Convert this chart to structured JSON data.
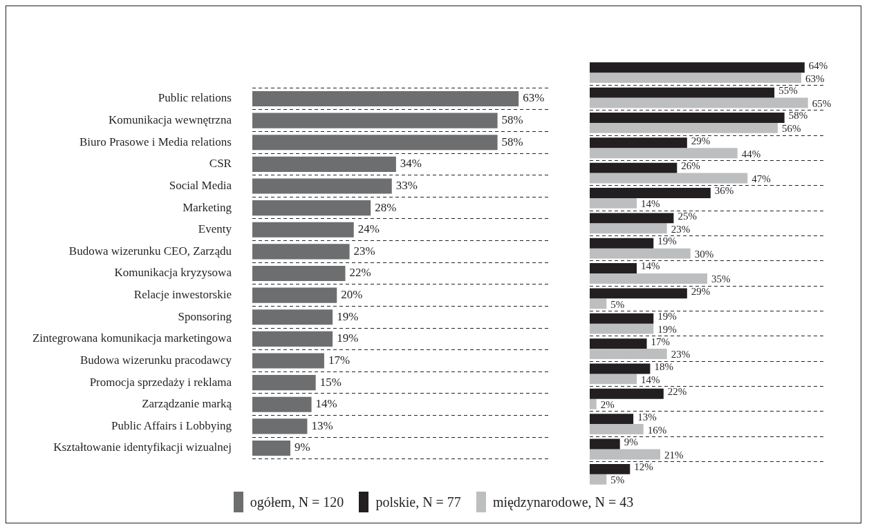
{
  "chart_data": [
    {
      "type": "bar",
      "orientation": "horizontal",
      "categories": [
        "Public relations",
        "Komunikacja wewnętrzna",
        "Biuro Prasowe i Media relations",
        "CSR",
        "Social Media",
        "Marketing",
        "Eventy",
        "Budowa wizerunku CEO, Zarządu",
        "Komunikacja kryzysowa",
        "Relacje inwestorskie",
        "Sponsoring",
        "Zintegrowana komunikacja marketingowa",
        "Budowa wizerunku pracodawcy",
        "Promocja sprzedaży i reklama",
        "Zarządzanie marką",
        "Public Affairs i Lobbying",
        "Kształtowanie identyfikacji wizualnej"
      ],
      "series": [
        {
          "name": "ogółem, N = 120",
          "color": "#6d6e70",
          "values": [
            63,
            58,
            58,
            34,
            33,
            28,
            24,
            23,
            22,
            20,
            19,
            19,
            17,
            15,
            14,
            13,
            9
          ],
          "value_labels": [
            "63%",
            "58%",
            "58%",
            "34%",
            "33%",
            "28%",
            "24%",
            "23%",
            "22%",
            "20%",
            "19%",
            "19%",
            "17%",
            "15%",
            "14%",
            "13%",
            "9%"
          ]
        }
      ],
      "xlim": [
        0,
        70
      ],
      "tick_labels": "y",
      "grid": "y",
      "legend": "bottom"
    },
    {
      "type": "bar",
      "orientation": "horizontal",
      "categories": [
        null,
        null,
        null,
        null,
        null,
        null,
        null,
        null,
        null,
        null,
        null,
        null,
        null,
        null,
        null,
        null,
        null
      ],
      "series": [
        {
          "name": "polskie, N = 77",
          "color": "#231f20",
          "values": [
            64,
            55,
            58,
            29,
            26,
            36,
            25,
            19,
            14,
            29,
            19,
            17,
            18,
            22,
            13,
            9,
            12
          ],
          "value_labels": [
            "64%",
            "55%",
            "58%",
            "29%",
            "26%",
            "36%",
            "25%",
            "19%",
            "14%",
            "29%",
            "19%",
            "17%",
            "18%",
            "22%",
            "13%",
            "9%",
            "12%"
          ]
        },
        {
          "name": "międzynarodowe, N = 43",
          "color": "#bcbec0",
          "values": [
            63,
            65,
            56,
            44,
            47,
            14,
            23,
            30,
            35,
            5,
            19,
            23,
            14,
            2,
            16,
            21,
            5
          ],
          "value_labels": [
            "63%",
            "65%",
            "56%",
            "44%",
            "47%",
            "14%",
            "23%",
            "30%",
            "35%",
            "5%",
            "19%",
            "23%",
            "14%",
            "2%",
            "16%",
            "21%",
            "5%"
          ]
        }
      ],
      "xlim": [
        0,
        70
      ],
      "tick_labels": false,
      "grid": "y",
      "legend": "bottom"
    }
  ]
}
